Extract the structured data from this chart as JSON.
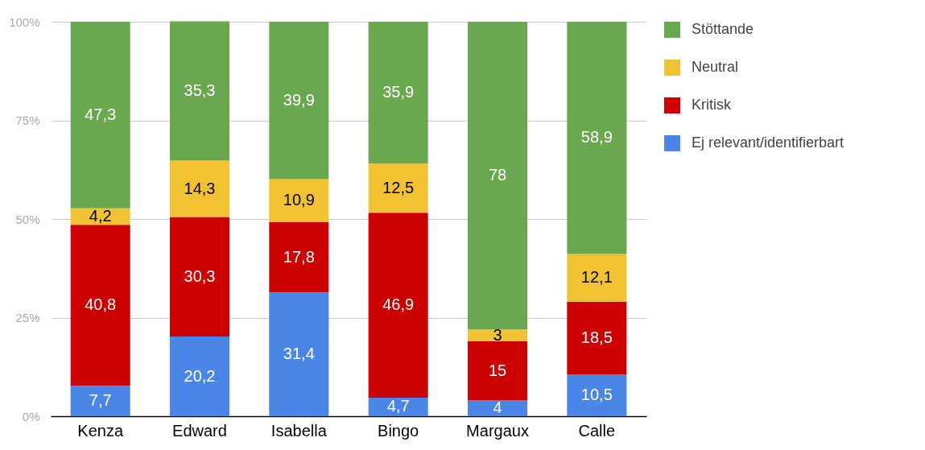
{
  "chart_data": {
    "type": "bar",
    "stacked": true,
    "categories": [
      "Kenza",
      "Edward",
      "Isabella",
      "Bingo",
      "Margaux",
      "Calle"
    ],
    "series": [
      {
        "name": "Ej relevant/identifierbart",
        "color": "#4a86e8",
        "values": [
          7.7,
          20.2,
          31.4,
          4.7,
          4,
          10.5
        ],
        "value_labels": [
          "7,7",
          "20,2",
          "31,4",
          "4,7",
          "4",
          "10,5"
        ]
      },
      {
        "name": "Kritisk",
        "color": "#cc0000",
        "values": [
          40.8,
          30.3,
          17.8,
          46.9,
          15,
          18.5
        ],
        "value_labels": [
          "40,8",
          "30,3",
          "17,8",
          "46,9",
          "15",
          "18,5"
        ]
      },
      {
        "name": "Neutral",
        "color": "#f1c232",
        "values": [
          4.2,
          14.3,
          10.9,
          12.5,
          3,
          12.1
        ],
        "value_labels": [
          "4,2",
          "14,3",
          "10,9",
          "12,5",
          "3",
          "12,1"
        ]
      },
      {
        "name": "Stöttande",
        "color": "#6aa84f",
        "values": [
          47.3,
          35.3,
          39.9,
          35.9,
          78,
          58.9
        ],
        "value_labels": [
          "47,3",
          "35,3",
          "39,9",
          "35,9",
          "78",
          "58,9"
        ]
      }
    ],
    "ylim": [
      0,
      100
    ],
    "yticks": [
      {
        "value": 0,
        "label": "0%"
      },
      {
        "value": 25,
        "label": "25%"
      },
      {
        "value": 50,
        "label": "50%"
      },
      {
        "value": 75,
        "label": "75%"
      },
      {
        "value": 100,
        "label": "100%"
      }
    ],
    "grid": "y",
    "legend": "top right"
  }
}
